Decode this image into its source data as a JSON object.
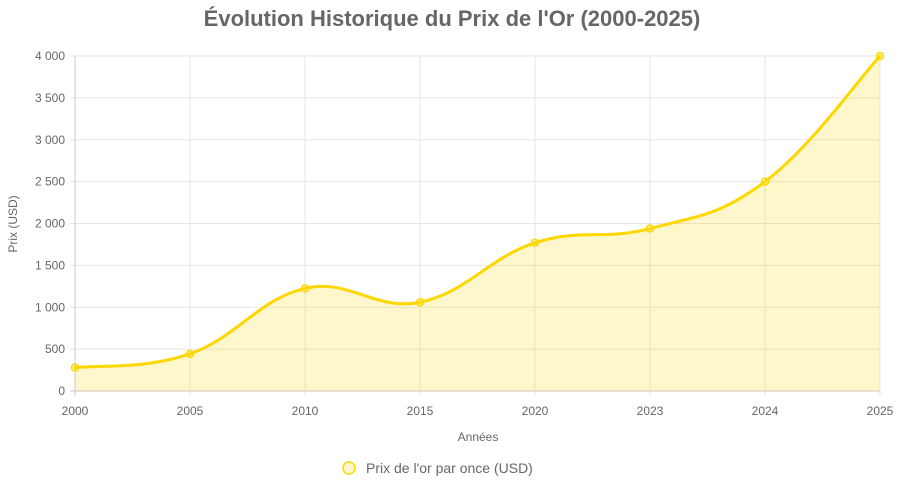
{
  "chart_data": {
    "type": "area",
    "title": "Évolution Historique du Prix de l'Or (2000-2025)",
    "xlabel": "Années",
    "ylabel": "Prix (USD)",
    "categories": [
      "2000",
      "2005",
      "2010",
      "2015",
      "2020",
      "2023",
      "2024",
      "2025"
    ],
    "series": [
      {
        "name": "Prix de l'or par once (USD)",
        "values": [
          279,
          444,
          1225,
          1060,
          1770,
          1940,
          2500,
          4000
        ],
        "color": "#FFD700",
        "fill": "rgba(255, 215, 0, 0.2)"
      }
    ],
    "ylim": [
      0,
      4000
    ],
    "yticks": [
      0,
      500,
      1000,
      1500,
      2000,
      2500,
      3000,
      3500,
      4000
    ],
    "ytick_labels": [
      "0",
      "500",
      "1 000",
      "1 500",
      "2 000",
      "2 500",
      "3 000",
      "3 500",
      "4 000"
    ],
    "grid": true,
    "legend": "bottom"
  }
}
